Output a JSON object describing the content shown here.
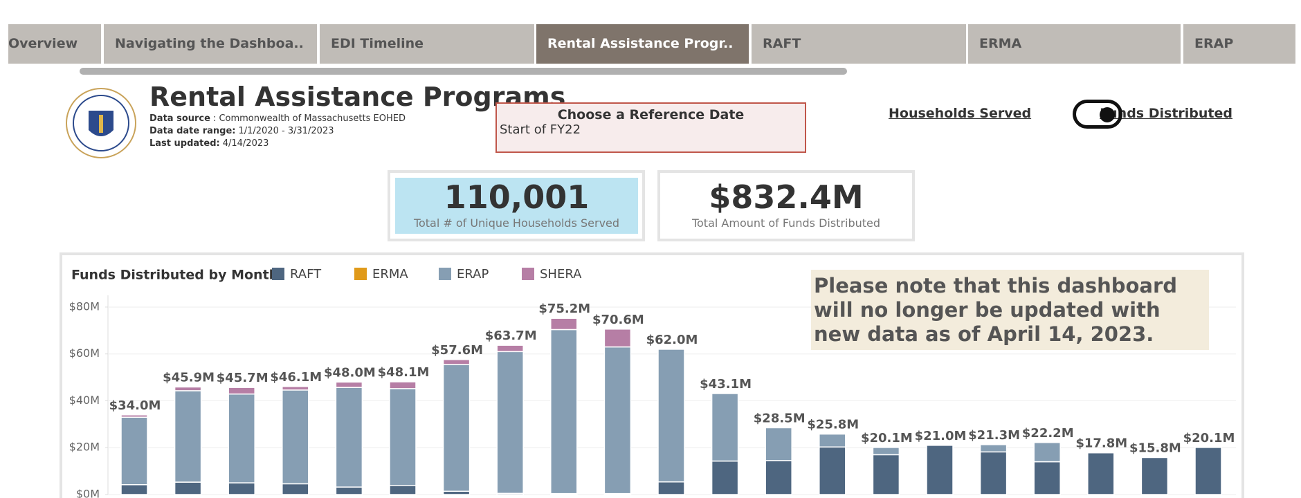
{
  "tabs": [
    "Overview",
    "Navigating the Dashboa..",
    "EDI Timeline",
    "Rental Assistance Progr..",
    "RAFT",
    "ERMA",
    "ERAP"
  ],
  "active_tab": 3,
  "header": {
    "title": "Rental Assistance Programs",
    "meta": [
      {
        "label": "Data source",
        "value": ": Commonwealth of Massachusetts EOHED"
      },
      {
        "label": "Data date range:",
        "value": "1/1/2020 - 3/31/2023"
      },
      {
        "label": "Last updated:",
        "value": "4/14/2023"
      }
    ]
  },
  "reference_date": {
    "label": "Choose a Reference Date",
    "value": "Start of FY22"
  },
  "toggle": {
    "left": "Households Served",
    "right": "Funds Distributed"
  },
  "kpis": [
    {
      "value": "110,001",
      "label": "Total # of Unique Households Served"
    },
    {
      "value": "$832.4M",
      "label": "Total Amount of Funds Distributed"
    }
  ],
  "notice": "Please note that this dashboard will no longer be updated with new data as of April 14, 2023.",
  "chart_data": {
    "type": "stacked_bar",
    "title": "Funds Distributed by Month",
    "categories": [
      null,
      null,
      null,
      null,
      null,
      null,
      null,
      null,
      null,
      null,
      null,
      null,
      null,
      null,
      null,
      null,
      null,
      null,
      null,
      null,
      null
    ],
    "series": [
      {
        "name": "RAFT",
        "color": "#4e6680",
        "values": [
          4.2,
          5.3,
          5.0,
          4.6,
          3.2,
          3.9,
          1.4,
          0.5,
          0.4,
          0.4,
          5.4,
          14.3,
          14.5,
          20.3,
          17.0,
          21.0,
          18.2,
          14.0,
          17.8,
          15.8,
          20.1
        ]
      },
      {
        "name": "ERMA",
        "color": "#e09a1a",
        "values": [
          0,
          0,
          0,
          0,
          0,
          0,
          0,
          0,
          0,
          0,
          0,
          0,
          0,
          0,
          0,
          0,
          0,
          0,
          0,
          0,
          0
        ]
      },
      {
        "name": "ERAP",
        "color": "#869eb3",
        "values": [
          28.8,
          39.0,
          37.9,
          40.0,
          42.5,
          41.3,
          54.1,
          60.5,
          70.0,
          62.6,
          56.6,
          28.8,
          14.0,
          5.5,
          3.1,
          0,
          3.1,
          8.2,
          0,
          0,
          0
        ]
      },
      {
        "name": "SHERA",
        "color": "#b67ea5",
        "values": [
          1.0,
          1.6,
          2.8,
          1.5,
          2.3,
          2.9,
          2.1,
          2.7,
          4.8,
          7.6,
          0,
          0,
          0,
          0,
          0,
          0,
          0,
          0,
          0,
          0,
          0
        ]
      }
    ],
    "totals": {
      "values": [
        34.0,
        45.9,
        45.7,
        46.1,
        48.0,
        48.1,
        57.6,
        63.7,
        75.2,
        70.6,
        62.0,
        43.1,
        28.5,
        25.8,
        20.1,
        21.0,
        21.3,
        22.2,
        17.8,
        15.8,
        20.1
      ],
      "value_labels": [
        "$34.0M",
        "$45.9M",
        "$45.7M",
        "$46.1M",
        "$48.0M",
        "$48.1M",
        "$57.6M",
        "$63.7M",
        "$75.2M",
        "$70.6M",
        "$62.0M",
        "$43.1M",
        "$28.5M",
        "$25.8M",
        "$20.1M",
        "$21.0M",
        "$21.3M",
        "$22.2M",
        "$17.8M",
        "$15.8M",
        "$20.1M"
      ]
    },
    "ylim": [
      0,
      85
    ],
    "yticks": [
      {
        "value": 0,
        "label": "$0M"
      },
      {
        "value": 20,
        "label": "$20M"
      },
      {
        "value": 40,
        "label": "$40M"
      },
      {
        "value": 60,
        "label": "$60M"
      },
      {
        "value": 80,
        "label": "$80M"
      }
    ],
    "grid": true
  }
}
